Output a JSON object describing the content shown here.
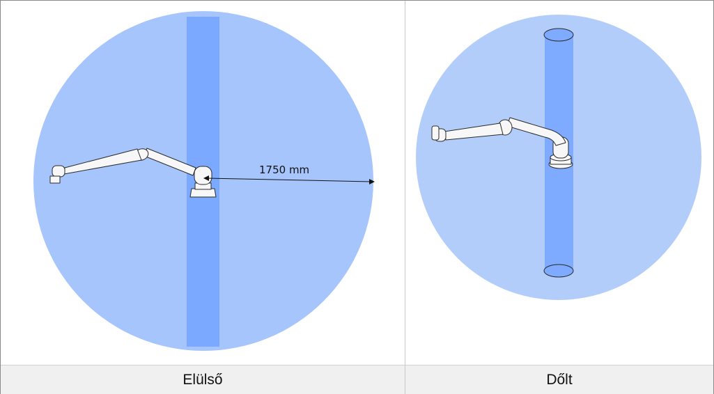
{
  "panels": {
    "front": {
      "caption": "Elülső",
      "dimension_label": "1750 mm"
    },
    "tilted": {
      "caption": "Dőlt"
    }
  },
  "colors": {
    "sphere_front": "#a6c5fc",
    "column_front": "#7aa9ff",
    "sphere_tilted": "#b3cdfb",
    "column_tilted": "#7eaaff",
    "robot_body": "#f7f7f7",
    "robot_outline": "#2a2a2a",
    "caption_bar": "#f0f0f0"
  }
}
